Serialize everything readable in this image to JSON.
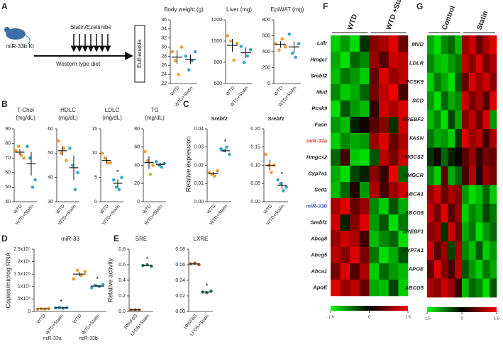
{
  "panel_labels": [
    "A",
    "B",
    "C",
    "D",
    "E",
    "F",
    "G"
  ],
  "schematic": {
    "model": "miR-33b KI",
    "treatment": "Statin/Ezetimibe",
    "diet": "Western type diet",
    "endpoint": "Euthanasia"
  },
  "chart_data": [
    {
      "type": "dot",
      "title": "Body weight (g)",
      "categories": [
        "WTD",
        "WTD+Statin"
      ],
      "colors": [
        "#f0a030",
        "#3aa6c8"
      ],
      "points": [
        [
          29,
          27,
          24,
          30
        ],
        [
          28,
          25,
          27,
          29
        ]
      ],
      "means": [
        27.8,
        27.3
      ],
      "sems": [
        1.5,
        1.0
      ],
      "ylim": [
        22,
        36
      ],
      "yticks": [
        22,
        24,
        26,
        28,
        30,
        32,
        34,
        36
      ]
    },
    {
      "type": "dot",
      "title": "Liver (mg)",
      "categories": [
        "WTD",
        "WTD+Statin"
      ],
      "colors": [
        "#f0a030",
        "#3aa6c8"
      ],
      "points": [
        [
          1050,
          1000,
          820,
          980
        ],
        [
          950,
          800,
          860,
          920
        ]
      ],
      "means": [
        960,
        890
      ],
      "sems": [
        60,
        50
      ],
      "ylim": [
        600,
        1200
      ],
      "yticks": [
        600,
        800,
        1000,
        1200
      ]
    },
    {
      "type": "dot",
      "title": "EpiWAT (mg)",
      "categories": [
        "WTD",
        "WTD+Statin"
      ],
      "colors": [
        "#f0a030",
        "#3aa6c8"
      ],
      "points": [
        [
          500,
          420,
          560,
          460
        ],
        [
          620,
          380,
          330,
          500
        ]
      ],
      "means": [
        490,
        460
      ],
      "sems": [
        40,
        70
      ],
      "ylim": [
        0,
        800
      ],
      "yticks": [
        0,
        200,
        400,
        600,
        800
      ]
    },
    {
      "type": "dot",
      "title": "T-Chol",
      "subtitle": "(mg/dL)",
      "categories": [
        "WTD",
        "WTD+Statin"
      ],
      "colors": [
        "#f0a030",
        "#3aa6c8"
      ],
      "points": [
        [
          75,
          78,
          72,
          70
        ],
        [
          78,
          70,
          50,
          55
        ]
      ],
      "means": [
        74,
        66
      ],
      "sems": [
        2,
        8
      ],
      "ylim": [
        40,
        90
      ],
      "yticks": [
        40,
        50,
        60,
        70,
        80,
        90
      ]
    },
    {
      "type": "dot",
      "title": "HDLC",
      "subtitle": "(mg/dL)",
      "categories": [
        "WTD",
        "WTD+Statin"
      ],
      "colors": [
        "#f0a030",
        "#3aa6c8"
      ],
      "points": [
        [
          55,
          50,
          52,
          47
        ],
        [
          52,
          45,
          35,
          42
        ]
      ],
      "means": [
        51,
        44
      ],
      "sems": [
        2,
        5
      ],
      "ylim": [
        30,
        60
      ],
      "yticks": [
        30,
        40,
        50,
        60
      ]
    },
    {
      "type": "dot",
      "title": "LDLC",
      "subtitle": "(mg/dL)",
      "categories": [
        "WTD",
        "WTD+Statin"
      ],
      "colors": [
        "#f0a030",
        "#3aa6c8"
      ],
      "points": [
        [
          10,
          9,
          8,
          8
        ],
        [
          4.5,
          3,
          2.5,
          5
        ]
      ],
      "means": [
        8.5,
        3.8
      ],
      "sems": [
        0.6,
        0.8
      ],
      "annotations": [
        {
          "index": 1,
          "text": "*"
        }
      ],
      "ylim": [
        0,
        15
      ],
      "yticks": [
        0,
        5,
        10,
        15
      ]
    },
    {
      "type": "dot",
      "title": "TG",
      "subtitle": "(mg/dL)",
      "categories": [
        "WTD",
        "WTD+Statin"
      ],
      "colors": [
        "#f0a030",
        "#3aa6c8"
      ],
      "points": [
        [
          55,
          45,
          30,
          40
        ],
        [
          44,
          40,
          38,
          42
        ]
      ],
      "means": [
        43,
        41
      ],
      "sems": [
        7,
        2
      ],
      "ylim": [
        0,
        80
      ],
      "yticks": [
        0,
        20,
        40,
        60,
        80
      ]
    },
    {
      "type": "dot",
      "title": "Srebf2",
      "ylabel": "Relative expression",
      "categories": [
        "WTD",
        "WTD+Statin"
      ],
      "colors": [
        "#f0a030",
        "#3aa6c8"
      ],
      "points": [
        [
          0.016,
          0.015,
          0.014,
          0.017
        ],
        [
          0.029,
          0.028,
          0.03,
          0.026
        ]
      ],
      "means": [
        0.0155,
        0.028
      ],
      "sems": [
        0.0007,
        0.0009
      ],
      "annotations": [
        {
          "index": 1,
          "text": "*"
        }
      ],
      "ylim": [
        0,
        0.04
      ],
      "yticks": [
        {
          "value": 0,
          "label": "0.00"
        },
        0.01,
        0.02,
        0.03,
        0.04
      ]
    },
    {
      "type": "dot",
      "title": "Srebf1",
      "categories": [
        "WTD",
        "WTD+Statin"
      ],
      "colors": [
        "#f0a030",
        "#3aa6c8"
      ],
      "points": [
        [
          0.13,
          0.1,
          0.08,
          0.1
        ],
        [
          0.06,
          0.05,
          0.03,
          0.04
        ]
      ],
      "means": [
        0.1,
        0.045
      ],
      "sems": [
        0.015,
        0.01
      ],
      "annotations": [
        {
          "index": 1,
          "text": "*"
        }
      ],
      "ylim": [
        0,
        0.2
      ],
      "yticks": [
        {
          "value": 0,
          "label": "0.00"
        },
        0.05,
        {
          "value": 0.1,
          "label": "0.10"
        },
        0.15,
        {
          "value": 0.2,
          "label": "0.20"
        }
      ]
    },
    {
      "type": "dot",
      "title": "miR-33",
      "ylabel": "Copies/microg RNA",
      "categories": [
        "WTD",
        "WTD+Statin",
        "WTD",
        "WTD+Statin"
      ],
      "group_labels": [
        "miR-33a",
        "miR-33b"
      ],
      "colors": [
        "#f0a030",
        "#3aa6c8",
        "#f0a030",
        "#3aa6c8"
      ],
      "points": [
        [
          9000,
          11000,
          10000,
          12000
        ],
        [
          14000,
          16000,
          13000,
          15000
        ],
        [
          130000,
          165000,
          145000,
          160000
        ],
        [
          95000,
          105000,
          100000,
          108000
        ]
      ],
      "means": [
        10500,
        14500,
        150000,
        102000
      ],
      "sems": [
        700,
        650,
        8000,
        3000
      ],
      "annotations": [
        {
          "index": 1,
          "text": "*"
        },
        {
          "index": 3,
          "text": "*"
        }
      ],
      "ylim": [
        0,
        250000
      ],
      "yticks": [
        0,
        {
          "value": 50000,
          "label": "5x10⁴"
        },
        {
          "value": 100000,
          "label": "1x10⁵"
        },
        {
          "value": 150000,
          "label": "1.5x10⁵"
        },
        {
          "value": 200000,
          "label": "2x10⁵"
        },
        {
          "value": 250000,
          "label": "2.5x10⁵"
        }
      ]
    },
    {
      "type": "dot",
      "title": "SRE",
      "ylabel": "Relative activity",
      "categories": [
        "10%FBS",
        "LPDS+Statin"
      ],
      "colors": [
        "#b86a2a",
        "#2f7f6a"
      ],
      "points": [
        [
          0.02,
          0.021,
          0.019
        ],
        [
          0.59,
          0.6,
          0.58
        ]
      ],
      "means": [
        0.02,
        0.59
      ],
      "sems": [
        0.001,
        0.003
      ],
      "annotations": [
        {
          "index": 1,
          "text": "*"
        }
      ],
      "ylim": [
        0,
        0.8
      ],
      "yticks": [
        {
          "value": 0,
          "label": "0.0"
        },
        0.2,
        0.4,
        0.6,
        0.8
      ]
    },
    {
      "type": "dot",
      "title": "LXRE",
      "categories": [
        "10%FBS",
        "LPDS+Statin"
      ],
      "colors": [
        "#b86a2a",
        "#2f7f6a"
      ],
      "points": [
        [
          0.061,
          0.062,
          0.06
        ],
        [
          0.025,
          0.024,
          0.026
        ]
      ],
      "means": [
        0.061,
        0.025
      ],
      "sems": [
        0.001,
        0.001
      ],
      "annotations": [
        {
          "index": 1,
          "text": "*"
        }
      ],
      "ylim": [
        0,
        0.08
      ],
      "yticks": [
        {
          "value": 0,
          "label": "0.00"
        },
        0.02,
        0.04,
        0.06,
        0.08
      ]
    },
    {
      "type": "heatmap",
      "column_groups": [
        "WTD",
        "WTD +Statin"
      ],
      "rows": [
        "Ldlr",
        "Hmgcr",
        "Srebf2",
        "Mvd",
        "Pcsk9",
        "Fasn",
        "miR-33a",
        "Hmgcs2",
        "Cyp7a1",
        "Scd1",
        "miR-33b",
        "Srebf1",
        "Abcg8",
        "Abcg5",
        "Abca1",
        "ApoE"
      ],
      "highlight": {
        "miR-33a": "#e8423a",
        "miR-33b": "#3a5bbf"
      },
      "values": [
        [
          -1.2,
          -0.9,
          -1.3,
          -0.3,
          0.8,
          1.0,
          1.3,
          0.6
        ],
        [
          -1.0,
          -1.3,
          -0.6,
          -0.8,
          0.9,
          0.5,
          1.2,
          1.1
        ],
        [
          -1.1,
          -0.7,
          -0.9,
          -1.2,
          0.6,
          1.3,
          0.9,
          1.1
        ],
        [
          -0.8,
          -1.2,
          -1.0,
          -0.6,
          0.7,
          1.1,
          1.4,
          0.4
        ],
        [
          -1.3,
          -0.5,
          -0.9,
          -1.1,
          0.3,
          1.2,
          1.0,
          1.3
        ],
        [
          -0.9,
          -1.1,
          -0.2,
          0.1,
          0.5,
          0.8,
          -0.3,
          1.2
        ],
        [
          -1.2,
          -0.8,
          -1.0,
          -0.9,
          0.9,
          1.3,
          0.6,
          1.0
        ],
        [
          -0.6,
          0.4,
          -1.2,
          -1.3,
          -0.5,
          1.1,
          0.7,
          1.2
        ],
        [
          -1.0,
          -1.3,
          -0.4,
          -0.2,
          0.8,
          0.3,
          1.4,
          -0.6
        ],
        [
          -1.1,
          -0.6,
          0.2,
          -0.9,
          1.0,
          0.4,
          0.9,
          1.2
        ],
        [
          1.0,
          1.3,
          0.6,
          0.9,
          -0.8,
          -1.2,
          -0.5,
          -1.0
        ],
        [
          1.2,
          -0.2,
          0.8,
          1.3,
          -0.9,
          -0.5,
          -1.3,
          -0.7
        ],
        [
          0.9,
          1.2,
          1.0,
          0.4,
          -1.1,
          -0.8,
          -0.6,
          -1.3
        ],
        [
          1.1,
          0.8,
          1.3,
          0.7,
          -0.7,
          -1.3,
          -1.0,
          -0.5
        ],
        [
          0.7,
          1.3,
          0.5,
          1.0,
          -1.2,
          -0.6,
          -0.9,
          -1.1
        ],
        [
          1.3,
          0.9,
          1.1,
          0.6,
          -1.0,
          -1.1,
          -0.4,
          -1.2
        ]
      ],
      "clim": [
        -1.5,
        1.5
      ],
      "cticks": [
        -1.5,
        0,
        1.5
      ]
    },
    {
      "type": "heatmap",
      "column_groups": [
        "Control",
        "Statin"
      ],
      "rows": [
        "MVD",
        "LDLR",
        "PCSK9",
        "SCD",
        "SREBF2",
        "FASN",
        "HMGCS2",
        "HMGCR",
        "ABCA1",
        "ABCG8",
        "SREBF1",
        "CYP7A1",
        "APOE",
        "ABCG5"
      ],
      "values": [
        [
          -1.0,
          -1.3,
          -0.8,
          -0.6,
          -1.1,
          0.9,
          1.2,
          0.6,
          1.0,
          1.3
        ],
        [
          -0.8,
          -1.1,
          -1.2,
          -0.9,
          -0.7,
          1.1,
          0.8,
          1.3,
          0.7,
          1.0
        ],
        [
          -1.2,
          -0.7,
          -1.0,
          -1.3,
          -0.5,
          0.6,
          1.3,
          0.9,
          1.2,
          0.8
        ],
        [
          -0.9,
          -1.3,
          -0.6,
          -1.0,
          -0.8,
          1.2,
          0.7,
          1.0,
          0.5,
          1.3
        ],
        [
          -1.1,
          -0.8,
          -1.3,
          -0.4,
          -1.0,
          0.8,
          1.1,
          0.6,
          1.3,
          -0.9
        ],
        [
          -0.7,
          -1.0,
          -0.9,
          -1.2,
          -0.3,
          1.3,
          0.9,
          1.1,
          0.4,
          1.0
        ],
        [
          -0.3,
          0.1,
          -0.6,
          -0.2,
          0.0,
          0.5,
          0.9,
          0.3,
          0.7,
          0.6
        ],
        [
          -0.8,
          -1.2,
          0.5,
          -1.0,
          -0.6,
          0.4,
          1.1,
          0.2,
          0.9,
          0.7
        ],
        [
          0.9,
          1.2,
          0.6,
          1.0,
          0.8,
          -0.9,
          -1.3,
          -1.1,
          -0.6,
          -1.2
        ],
        [
          1.1,
          0.7,
          1.3,
          0.5,
          0.9,
          -1.2,
          -0.8,
          -1.0,
          -0.4,
          -0.7
        ],
        [
          0.8,
          1.0,
          -0.3,
          1.2,
          0.6,
          -1.0,
          -0.7,
          -1.3,
          -0.9,
          -0.6
        ],
        [
          1.2,
          0.5,
          0.9,
          -0.4,
          1.0,
          -0.8,
          -1.1,
          -0.5,
          -1.2,
          -0.9
        ],
        [
          0.6,
          1.3,
          0.8,
          0.4,
          1.1,
          -0.5,
          -0.9,
          -1.2,
          -0.7,
          -1.0
        ],
        [
          1.0,
          0.8,
          1.2,
          0.9,
          0.3,
          -1.1,
          -0.6,
          -0.8,
          -1.3,
          -0.5
        ]
      ],
      "clim": [
        -1.5,
        1.5
      ],
      "cticks": [
        -1.5,
        0,
        1.5
      ]
    }
  ]
}
